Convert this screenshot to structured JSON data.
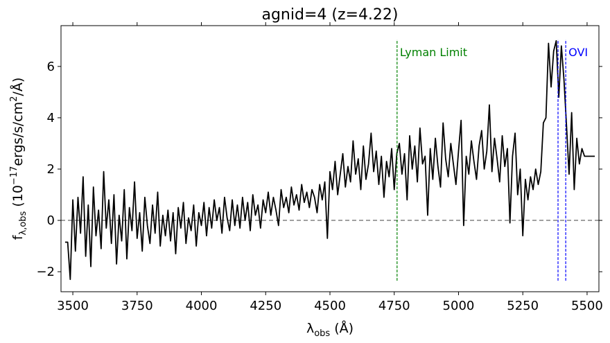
{
  "chart_data": {
    "type": "line",
    "title": "agnid=4 (z=4.22)",
    "xlabel": {
      "base": "λ",
      "sub": "obs",
      "rest": " (Å)"
    },
    "ylabel": {
      "base": "f",
      "sub": "λ,obs",
      "a": " (10",
      "sup1": "−17",
      "b": "ergs/s/cm",
      "sup2": "2",
      "c": "/Å)"
    },
    "color": "#000000",
    "xlim": [
      3454,
      5546
    ],
    "ylim": [
      -2.78,
      7.59
    ],
    "xticks": [
      3500,
      3750,
      4000,
      4250,
      4500,
      4750,
      5000,
      5250,
      5500
    ],
    "yticks": [
      {
        "value": -2,
        "label": "−2"
      },
      0,
      2,
      4,
      6
    ],
    "hline": {
      "y": 0,
      "color": "#808080"
    },
    "vline_ylim": [
      -2.35,
      7.05
    ],
    "vlines": [
      {
        "x": 4761,
        "color": "#008000",
        "label": "Lyman Limit"
      },
      {
        "x": 5387,
        "color": "#0000ff"
      },
      {
        "x": 5417,
        "color": "#0000ff",
        "label": "OVI"
      }
    ],
    "x": [
      3470,
      3480,
      3490,
      3500,
      3510,
      3520,
      3530,
      3540,
      3550,
      3560,
      3570,
      3580,
      3590,
      3600,
      3610,
      3620,
      3630,
      3640,
      3650,
      3660,
      3670,
      3680,
      3690,
      3700,
      3710,
      3720,
      3730,
      3740,
      3750,
      3760,
      3770,
      3780,
      3790,
      3800,
      3810,
      3820,
      3830,
      3840,
      3850,
      3860,
      3870,
      3880,
      3890,
      3900,
      3910,
      3920,
      3930,
      3940,
      3950,
      3960,
      3970,
      3980,
      3990,
      4000,
      4010,
      4020,
      4030,
      4040,
      4050,
      4060,
      4070,
      4080,
      4090,
      4100,
      4110,
      4120,
      4130,
      4140,
      4150,
      4160,
      4170,
      4180,
      4190,
      4200,
      4210,
      4220,
      4230,
      4240,
      4250,
      4260,
      4270,
      4280,
      4290,
      4300,
      4310,
      4320,
      4330,
      4340,
      4350,
      4360,
      4370,
      4380,
      4390,
      4400,
      4410,
      4420,
      4430,
      4440,
      4450,
      4460,
      4470,
      4480,
      4490,
      4500,
      4510,
      4520,
      4530,
      4540,
      4550,
      4560,
      4570,
      4580,
      4590,
      4600,
      4610,
      4620,
      4630,
      4640,
      4650,
      4660,
      4670,
      4680,
      4690,
      4700,
      4710,
      4720,
      4730,
      4740,
      4750,
      4760,
      4770,
      4780,
      4790,
      4800,
      4810,
      4820,
      4830,
      4840,
      4850,
      4860,
      4870,
      4880,
      4890,
      4900,
      4910,
      4920,
      4930,
      4940,
      4950,
      4960,
      4970,
      4980,
      4990,
      5000,
      5010,
      5020,
      5030,
      5040,
      5050,
      5060,
      5070,
      5080,
      5090,
      5100,
      5110,
      5120,
      5130,
      5140,
      5150,
      5160,
      5170,
      5180,
      5190,
      5200,
      5210,
      5220,
      5230,
      5240,
      5250,
      5260,
      5270,
      5280,
      5290,
      5300,
      5310,
      5320,
      5330,
      5340,
      5350,
      5360,
      5370,
      5380,
      5390,
      5400,
      5410,
      5420,
      5430,
      5440,
      5450,
      5460,
      5470,
      5480,
      5490,
      5500,
      5510,
      5520,
      5530
    ],
    "values": [
      -0.85,
      -0.85,
      -2.3,
      0.8,
      -1.2,
      0.9,
      -0.5,
      1.7,
      -1.4,
      0.6,
      -1.8,
      1.3,
      -0.6,
      0.4,
      -1.1,
      1.9,
      -0.3,
      0.8,
      -0.9,
      1.0,
      -1.7,
      0.2,
      -0.8,
      1.2,
      -1.5,
      0.5,
      -0.4,
      1.5,
      -0.7,
      0.3,
      -1.2,
      0.9,
      -0.2,
      -0.9,
      0.6,
      -0.5,
      1.1,
      -1.0,
      0.2,
      -0.6,
      0.4,
      -0.8,
      0.3,
      -1.3,
      0.5,
      -0.3,
      0.7,
      -0.9,
      0.1,
      -0.4,
      0.6,
      -1.0,
      0.3,
      -0.2,
      0.7,
      -0.6,
      0.5,
      -0.3,
      0.8,
      0.0,
      0.5,
      -0.5,
      0.9,
      0.1,
      -0.4,
      0.8,
      -0.2,
      0.6,
      -0.3,
      0.9,
      0.0,
      0.7,
      -0.4,
      1.0,
      0.2,
      0.6,
      -0.3,
      0.8,
      0.3,
      1.1,
      0.2,
      0.9,
      0.4,
      -0.2,
      1.2,
      0.5,
      0.9,
      0.3,
      1.3,
      0.6,
      1.0,
      0.4,
      1.4,
      0.7,
      1.1,
      0.5,
      1.2,
      0.9,
      0.3,
      1.4,
      0.8,
      1.5,
      -0.7,
      1.9,
      1.2,
      2.3,
      1.0,
      1.8,
      2.6,
      1.3,
      2.1,
      1.5,
      3.1,
      1.8,
      2.4,
      1.2,
      2.9,
      1.6,
      2.2,
      3.4,
      1.9,
      2.7,
      1.4,
      2.5,
      0.9,
      2.3,
      1.7,
      2.8,
      1.2,
      2.6,
      3.0,
      1.8,
      2.6,
      0.8,
      3.3,
      2.0,
      2.9,
      1.5,
      3.6,
      2.2,
      2.5,
      0.2,
      2.8,
      1.6,
      3.2,
      2.1,
      1.3,
      3.8,
      2.4,
      1.7,
      3.0,
      2.2,
      1.4,
      2.7,
      3.9,
      -0.2,
      2.5,
      1.8,
      3.1,
      2.3,
      1.6,
      2.9,
      3.5,
      2.0,
      2.7,
      4.5,
      1.9,
      3.2,
      2.4,
      1.5,
      3.3,
      2.1,
      2.8,
      -0.1,
      2.5,
      3.4,
      1.0,
      2.0,
      -0.6,
      1.6,
      0.8,
      1.7,
      1.2,
      2.0,
      1.4,
      1.9,
      3.8,
      4.0,
      6.9,
      5.2,
      6.6,
      7.0,
      4.8,
      6.8,
      5.5,
      3.7,
      1.8,
      4.2,
      1.2,
      3.2,
      2.2,
      2.8,
      2.5,
      2.5,
      2.5,
      2.5,
      2.5
    ]
  }
}
